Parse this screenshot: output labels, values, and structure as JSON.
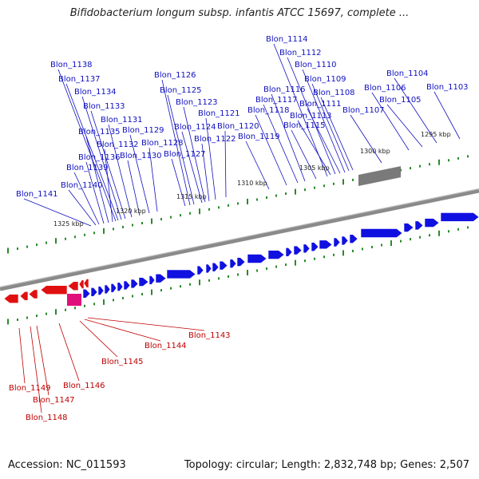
{
  "title": "Bifidobacterium longum subsp. infantis ATCC 15697, complete ...",
  "footer": {
    "accession": "Accession: NC_011593",
    "topology": "Topology: circular; Length: 2,832,748 bp; Genes: 2,507"
  },
  "colors": {
    "forward_gene": "#1010e0",
    "reverse_gene": "#e01010",
    "pink_feature": "#e0107a",
    "gray_feature": "#7a7a7a",
    "backbone": "#8a8a8a",
    "ticks": "#2a8a2a",
    "forward_label": "#1010c0",
    "reverse_label": "#c00000"
  },
  "scale_labels": [
    "1325 kbp",
    "1320 kbp",
    "1315 kbp",
    "1310 kbp",
    "1305 kbp",
    "1300 kbp",
    "1295 kbp"
  ],
  "forward_genes": [
    "Blon_1141",
    "Blon_1140",
    "Blon_1139",
    "Blon_1136",
    "Blon_1135",
    "Blon_1132",
    "Blon_1138",
    "Blon_1137",
    "Blon_1134",
    "Blon_1133",
    "Blon_1131",
    "Blon_1130",
    "Blon_1129",
    "Blon_1128",
    "Blon_1127",
    "Blon_1126",
    "Blon_1125",
    "Blon_1124",
    "Blon_1123",
    "Blon_1122",
    "Blon_1121",
    "Blon_1120",
    "Blon_1119",
    "Blon_1118",
    "Blon_1117",
    "Blon_1116",
    "Blon_1115",
    "Blon_1114",
    "Blon_1113",
    "Blon_1112",
    "Blon_1111",
    "Blon_1110",
    "Blon_1109",
    "Blon_1108",
    "Blon_1107",
    "Blon_1106",
    "Blon_1105",
    "Blon_1104",
    "Blon_1103"
  ],
  "reverse_genes": [
    "Blon_1143",
    "Blon_1144",
    "Blon_1145",
    "Blon_1146",
    "Blon_1147",
    "Blon_1148",
    "Blon_1149"
  ]
}
